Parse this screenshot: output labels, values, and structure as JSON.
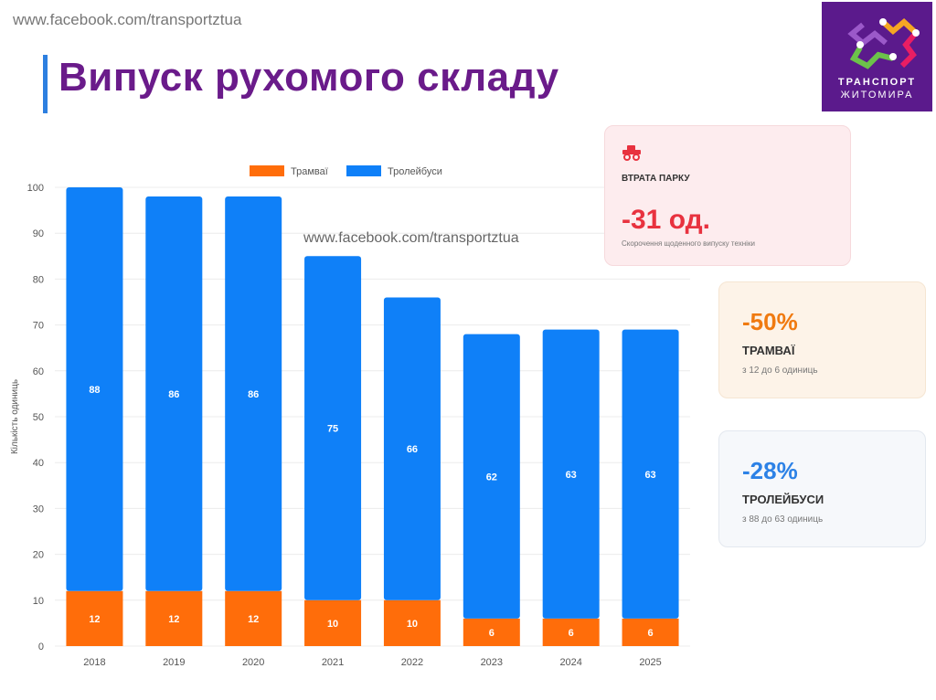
{
  "watermark": "www.facebook.com/transportztua",
  "title": "Випуск рухомого складу",
  "logo": {
    "line1": "ТРАНСПОРТ",
    "line2": "ЖИТОМИРА"
  },
  "cards": [
    {
      "label": "ВТРАТА ПАРКУ",
      "value": "-31 од.",
      "sub": "Скорочення щоденного випуску техніки",
      "icon": "truck-icon",
      "color": "#e8323f"
    },
    {
      "value": "-50%",
      "label": "ТРАМВАЇ",
      "sub": "з 12 до 6 одиниць",
      "color": "#f07a10"
    },
    {
      "value": "-28%",
      "label": "ТРОЛЕЙБУСИ",
      "sub": "з 88 до 63 одиниць",
      "color": "#2d82e6"
    }
  ],
  "chart_data": {
    "type": "bar",
    "stacked": true,
    "categories": [
      "2018",
      "2019",
      "2020",
      "2021",
      "2022",
      "2023",
      "2024",
      "2025"
    ],
    "series": [
      {
        "name": "Трамваї",
        "color": "#ff6d0a",
        "values": [
          12,
          12,
          12,
          10,
          10,
          6,
          6,
          6
        ]
      },
      {
        "name": "Тролейбуси",
        "color": "#0f80f8",
        "values": [
          88,
          86,
          86,
          75,
          66,
          62,
          63,
          63
        ]
      }
    ],
    "ylabel": "Кількість одиниць",
    "ylim": [
      0,
      100
    ],
    "yticks": [
      "0",
      "10",
      "20",
      "30",
      "40",
      "50",
      "60",
      "70",
      "80",
      "90",
      "100"
    ],
    "legend": "top",
    "grid": true
  }
}
